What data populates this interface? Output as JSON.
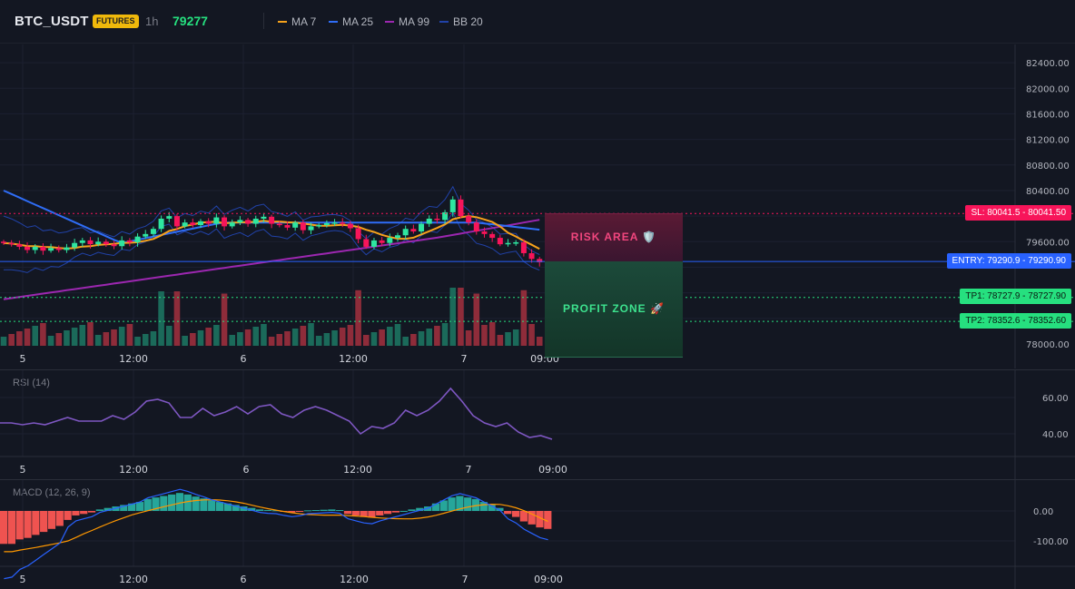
{
  "header": {
    "symbol": "BTC_USDT",
    "badge": "FUTURES",
    "timeframe": "1h",
    "last_price": "79277",
    "legend": [
      {
        "label": "MA 7",
        "color": "#f7a21b"
      },
      {
        "label": "MA 25",
        "color": "#2f6df6"
      },
      {
        "label": "MA 99",
        "color": "#9c27b0"
      },
      {
        "label": "BB 20",
        "color": "#2142a8"
      }
    ]
  },
  "main_chart": {
    "price_axis": [
      "82400.00",
      "82000.00",
      "81600.00",
      "81200.00",
      "80800.00",
      "80400.00",
      "79600.00",
      "78000.00"
    ],
    "time_axis": [
      "5",
      "12:00",
      "6",
      "12:00",
      "7",
      "09:00"
    ],
    "levels": {
      "sl": {
        "label": "SL: 80041.5 - 80041.50",
        "color": "#f7155a"
      },
      "entry": {
        "label": "ENTRY: 79290.9 - 79290.90",
        "color": "#2962ff"
      },
      "tp1": {
        "label": "TP1: 78727.9 - 78727.90",
        "color": "#26e07f"
      },
      "tp2": {
        "label": "TP2: 78352.6 - 78352.60",
        "color": "#26e07f"
      }
    },
    "zones": {
      "risk": "RISK AREA 🛡️",
      "profit": "PROFIT ZONE 🚀"
    }
  },
  "rsi": {
    "label": "RSI (14)",
    "axis": [
      "60.00",
      "40.00"
    ],
    "time_axis": [
      "5",
      "12:00",
      "6",
      "12:00",
      "7",
      "09:00"
    ]
  },
  "macd": {
    "label": "MACD (12, 26, 9)",
    "axis": [
      "0.00",
      "-100.00"
    ],
    "time_axis": [
      "5",
      "12:00",
      "6",
      "12:00",
      "7",
      "09:00"
    ]
  },
  "chart_data": {
    "type": "candlestick",
    "symbol": "BTC_USDT",
    "interval": "1h",
    "ylim": [
      78000,
      82600
    ],
    "closes": [
      79580,
      79560,
      79520,
      79470,
      79520,
      79460,
      79500,
      79470,
      79510,
      79580,
      79620,
      79560,
      79600,
      79560,
      79530,
      79620,
      79590,
      79680,
      79720,
      79800,
      79960,
      80000,
      79840,
      79900,
      79860,
      79920,
      79880,
      79980,
      79840,
      79900,
      79940,
      79880,
      79960,
      79990,
      79880,
      79860,
      79820,
      79900,
      79780,
      79840,
      79860,
      79890,
      79900,
      79880,
      79810,
      79640,
      79520,
      79620,
      79580,
      79660,
      79700,
      79800,
      79760,
      79880,
      79960,
      79940,
      80060,
      80260,
      80000,
      79900,
      79760,
      79720,
      79660,
      79560,
      79580,
      79590,
      79420,
      79330,
      79277
    ],
    "volume_max_index": 57,
    "rsi": [
      46,
      46,
      45,
      46,
      45,
      47,
      49,
      47,
      47,
      47,
      50,
      48,
      52,
      58,
      59,
      57,
      49,
      49,
      54,
      50,
      52,
      55,
      51,
      55,
      56,
      51,
      49,
      53,
      55,
      53,
      50,
      47,
      40,
      44,
      43,
      46,
      53,
      50,
      53,
      58,
      65,
      58,
      50,
      46,
      44,
      46,
      41,
      38,
      39,
      37
    ],
    "macd_histogram": [
      -110,
      -110,
      -95,
      -90,
      -80,
      -70,
      -60,
      -50,
      -30,
      -15,
      -10,
      -5,
      5,
      10,
      15,
      20,
      25,
      30,
      40,
      45,
      50,
      55,
      60,
      55,
      48,
      42,
      35,
      30,
      25,
      20,
      15,
      10,
      5,
      3,
      2,
      -2,
      -5,
      -3,
      2,
      3,
      4,
      5,
      3,
      -10,
      -15,
      -20,
      -22,
      -15,
      -10,
      -5,
      0,
      5,
      10,
      15,
      25,
      35,
      45,
      50,
      45,
      40,
      30,
      20,
      10,
      -10,
      -20,
      -35,
      -45,
      -55,
      -60
    ],
    "series": [
      {
        "name": "MA 7"
      },
      {
        "name": "MA 25"
      },
      {
        "name": "MA 99"
      },
      {
        "name": "BB 20"
      }
    ]
  }
}
